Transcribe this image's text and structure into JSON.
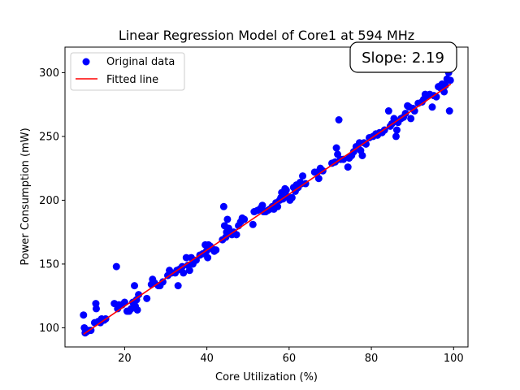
{
  "chart_data": {
    "type": "scatter",
    "title": "Linear Regression Model of Core1 at 594 MHz",
    "xlabel": "Core Utilization (%)",
    "ylabel": "Power Consumption (mW)",
    "xlim": [
      5.5,
      103.5
    ],
    "ylim": [
      85,
      320
    ],
    "xticks": [
      20,
      40,
      60,
      80,
      100
    ],
    "yticks": [
      100,
      150,
      200,
      250,
      300
    ],
    "grid": false,
    "legend_position": "top-left",
    "annotation": "Slope: 2.19",
    "colors": {
      "points": "#0000ff",
      "line": "#ff0000"
    },
    "series": [
      {
        "name": "Original data",
        "kind": "scatter",
        "points": [
          [
            10.0,
            110
          ],
          [
            10.2,
            100
          ],
          [
            10.4,
            96
          ],
          [
            10.8,
            97
          ],
          [
            11.3,
            98
          ],
          [
            11.8,
            98
          ],
          [
            12.7,
            104
          ],
          [
            13.0,
            119
          ],
          [
            13.1,
            115
          ],
          [
            13.6,
            105
          ],
          [
            14.1,
            104
          ],
          [
            14.4,
            107
          ],
          [
            15.0,
            106
          ],
          [
            15.4,
            107
          ],
          [
            17.5,
            119
          ],
          [
            18.0,
            148
          ],
          [
            18.3,
            115
          ],
          [
            18.6,
            118
          ],
          [
            19.4,
            118
          ],
          [
            20.0,
            120
          ],
          [
            20.6,
            113
          ],
          [
            21.1,
            113
          ],
          [
            21.6,
            115
          ],
          [
            22.0,
            120
          ],
          [
            22.4,
            133
          ],
          [
            22.6,
            117
          ],
          [
            22.9,
            122
          ],
          [
            23.1,
            114
          ],
          [
            23.4,
            126
          ],
          [
            25.4,
            123
          ],
          [
            26.5,
            134
          ],
          [
            26.8,
            138
          ],
          [
            27.3,
            135
          ],
          [
            28.2,
            133
          ],
          [
            28.6,
            133
          ],
          [
            29.3,
            136
          ],
          [
            30.5,
            141
          ],
          [
            30.9,
            145
          ],
          [
            31.4,
            143
          ],
          [
            32.3,
            143
          ],
          [
            32.7,
            145
          ],
          [
            33.0,
            133
          ],
          [
            33.4,
            146
          ],
          [
            34.0,
            148
          ],
          [
            34.3,
            143
          ],
          [
            35.0,
            155
          ],
          [
            35.4,
            149
          ],
          [
            35.8,
            145
          ],
          [
            36.2,
            155
          ],
          [
            36.6,
            150
          ],
          [
            37.4,
            153
          ],
          [
            38.3,
            157
          ],
          [
            39.0,
            158
          ],
          [
            39.6,
            165
          ],
          [
            39.9,
            160
          ],
          [
            40.2,
            155
          ],
          [
            40.4,
            165
          ],
          [
            40.8,
            164
          ],
          [
            41.3,
            162
          ],
          [
            41.8,
            160
          ],
          [
            42.2,
            161
          ],
          [
            43.8,
            169
          ],
          [
            44.1,
            195
          ],
          [
            44.3,
            180
          ],
          [
            44.6,
            171
          ],
          [
            44.8,
            175
          ],
          [
            45.0,
            185
          ],
          [
            45.3,
            178
          ],
          [
            45.7,
            175
          ],
          [
            46.1,
            173
          ],
          [
            46.5,
            175
          ],
          [
            47.2,
            173
          ],
          [
            47.7,
            180
          ],
          [
            48.2,
            183
          ],
          [
            48.6,
            186
          ],
          [
            49.1,
            185
          ],
          [
            51.2,
            181
          ],
          [
            51.5,
            191
          ],
          [
            52.3,
            192
          ],
          [
            52.9,
            193
          ],
          [
            53.2,
            194
          ],
          [
            53.5,
            196
          ],
          [
            53.8,
            191
          ],
          [
            54.3,
            191
          ],
          [
            54.8,
            192
          ],
          [
            55.3,
            193
          ],
          [
            55.9,
            195
          ],
          [
            56.3,
            193
          ],
          [
            56.8,
            198
          ],
          [
            57.2,
            195
          ],
          [
            57.7,
            200
          ],
          [
            58.0,
            202
          ],
          [
            58.2,
            206
          ],
          [
            58.5,
            201
          ],
          [
            59.0,
            209
          ],
          [
            59.3,
            208
          ],
          [
            59.6,
            203
          ],
          [
            60.2,
            200
          ],
          [
            60.7,
            202
          ],
          [
            61.1,
            210
          ],
          [
            61.5,
            207
          ],
          [
            61.8,
            212
          ],
          [
            62.2,
            210
          ],
          [
            62.7,
            214
          ],
          [
            63.0,
            213
          ],
          [
            63.3,
            219
          ],
          [
            64.0,
            213
          ],
          [
            66.2,
            222
          ],
          [
            66.9,
            222
          ],
          [
            67.2,
            217
          ],
          [
            67.6,
            225
          ],
          [
            68.2,
            223
          ],
          [
            70.4,
            229
          ],
          [
            71.2,
            230
          ],
          [
            71.5,
            241
          ],
          [
            71.8,
            236
          ],
          [
            72.1,
            263
          ],
          [
            72.5,
            232
          ],
          [
            73.2,
            232
          ],
          [
            74.3,
            226
          ],
          [
            74.6,
            233
          ],
          [
            75.2,
            235
          ],
          [
            75.7,
            238
          ],
          [
            76.3,
            242
          ],
          [
            76.7,
            242
          ],
          [
            77.1,
            245
          ],
          [
            77.4,
            239
          ],
          [
            77.8,
            235
          ],
          [
            78.2,
            245
          ],
          [
            78.7,
            244
          ],
          [
            79.5,
            249
          ],
          [
            80.4,
            250
          ],
          [
            81.1,
            252
          ],
          [
            81.5,
            251
          ],
          [
            82.0,
            253
          ],
          [
            82.6,
            253
          ],
          [
            83.2,
            255
          ],
          [
            84.2,
            270
          ],
          [
            84.6,
            258
          ],
          [
            85.0,
            260
          ],
          [
            85.5,
            264
          ],
          [
            86.0,
            250
          ],
          [
            86.2,
            255
          ],
          [
            86.5,
            261
          ],
          [
            87.2,
            264
          ],
          [
            87.8,
            265
          ],
          [
            88.3,
            268
          ],
          [
            88.8,
            274
          ],
          [
            89.2,
            273
          ],
          [
            89.6,
            264
          ],
          [
            90.1,
            272
          ],
          [
            90.5,
            270
          ],
          [
            91.4,
            276
          ],
          [
            92.3,
            277
          ],
          [
            92.7,
            279
          ],
          [
            93.1,
            283
          ],
          [
            93.6,
            282
          ],
          [
            94.2,
            283
          ],
          [
            94.8,
            273
          ],
          [
            95.2,
            282
          ],
          [
            95.8,
            281
          ],
          [
            96.3,
            289
          ],
          [
            96.8,
            288
          ],
          [
            97.2,
            291
          ],
          [
            97.7,
            285
          ],
          [
            98.0,
            290
          ],
          [
            98.4,
            295
          ],
          [
            98.8,
            300
          ],
          [
            99.0,
            270
          ],
          [
            99.2,
            294
          ]
        ]
      },
      {
        "name": "Fitted line",
        "kind": "line",
        "points": [
          [
            10.0,
            95
          ],
          [
            99.3,
            291
          ]
        ]
      }
    ]
  }
}
